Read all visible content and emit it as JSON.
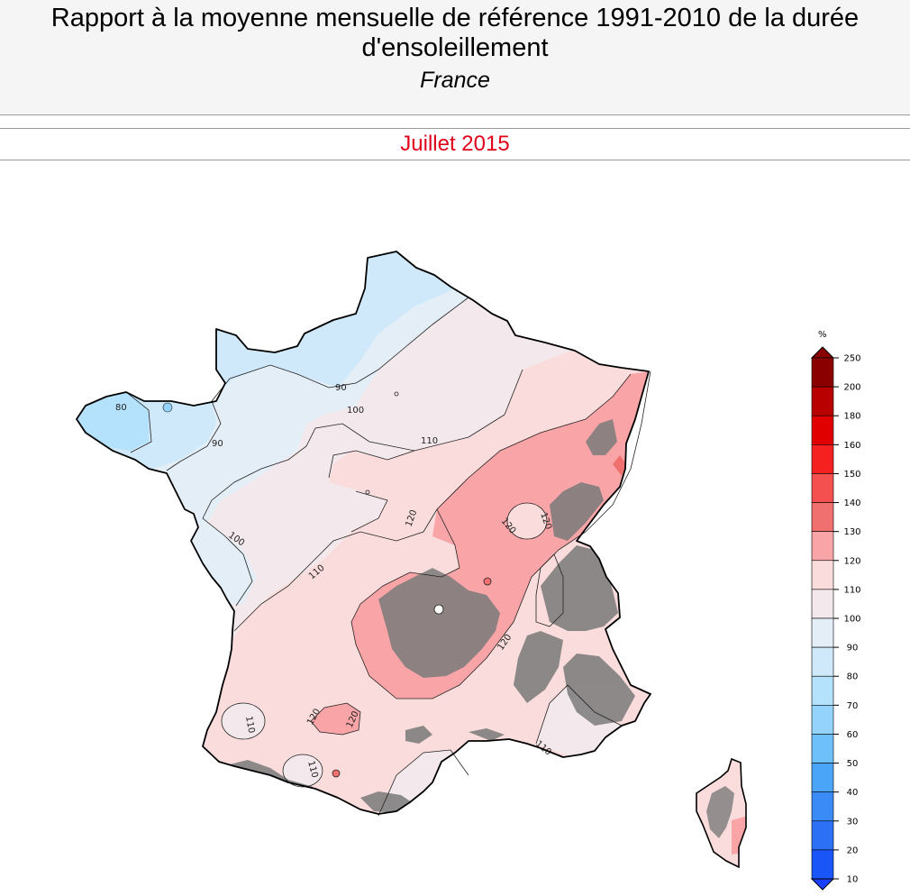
{
  "header": {
    "title_line1": "Rapport à la moyenne mensuelle de référence 1991-2010 de la durée",
    "title_line2": "d'ensoleillement",
    "subtitle": "France"
  },
  "period": "Juillet 2015",
  "map": {
    "contours": [
      "80",
      "90",
      "90",
      "100",
      "100",
      "110",
      "110",
      "110",
      "110",
      "120",
      "120",
      "120",
      "120",
      "120",
      "120",
      "110"
    ]
  },
  "legend": {
    "unit": "%",
    "ticks": [
      "250",
      "200",
      "180",
      "160",
      "150",
      "140",
      "130",
      "120",
      "110",
      "100",
      "90",
      "80",
      "70",
      "60",
      "50",
      "40",
      "30",
      "20",
      "10"
    ],
    "colors": [
      "#8a0000",
      "#b80000",
      "#e00000",
      "#f52020",
      "#f55050",
      "#f07070",
      "#f9a5a8",
      "#fadcdc",
      "#f3e9ec",
      "#e4eef7",
      "#cfe9fa",
      "#b4e2fc",
      "#94d3fb",
      "#6ec0fa",
      "#4aa4f7",
      "#3a8bf5",
      "#2b70f5",
      "#1a55f8"
    ],
    "bottom_color": "#1a40ff"
  }
}
